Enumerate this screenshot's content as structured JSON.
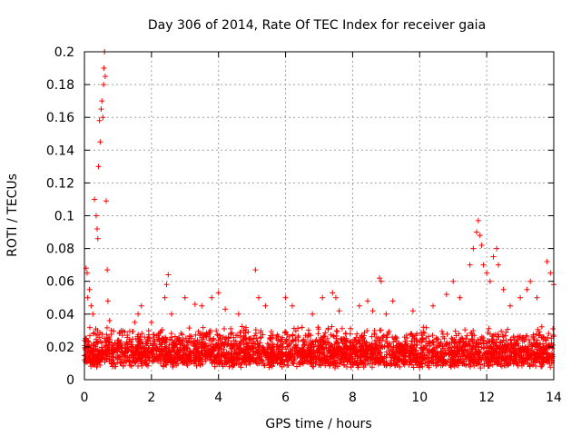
{
  "chart_data": {
    "type": "scatter",
    "title": "Day 306 of 2014, Rate Of TEC Index for receiver gaia",
    "xlabel": "GPS time / hours",
    "ylabel": "ROTI / TECUs",
    "xlim": [
      0,
      14
    ],
    "ylim": [
      0,
      0.2
    ],
    "xticks": [
      "0",
      "2",
      "4",
      "6",
      "8",
      "10",
      "12",
      "14"
    ],
    "yticks": [
      "0",
      "0.02",
      "0.04",
      "0.06",
      "0.08",
      "0.1",
      "0.12",
      "0.14",
      "0.16",
      "0.18",
      "0.2"
    ],
    "grid": true,
    "marker": "plus",
    "color": "#ff0000",
    "baseline_band": {
      "low": 0.007,
      "high": 0.03,
      "description_note": "dense scatter of points across 0-14 h"
    },
    "series": [
      {
        "x": [
          0.05,
          0.08,
          0.1,
          0.15,
          0.2,
          0.25,
          0.3,
          0.35,
          0.38,
          0.4,
          0.42,
          0.45,
          0.47,
          0.5,
          0.52,
          0.55,
          0.57,
          0.58,
          0.6,
          0.62,
          0.65,
          0.68,
          0.7,
          0.75,
          0.8,
          1.1,
          1.5,
          1.6,
          1.7,
          2.0,
          2.4,
          2.45,
          2.5,
          2.6,
          3.0,
          3.3,
          3.5,
          3.8,
          4.0,
          4.2,
          4.6,
          5.1,
          5.2,
          5.4,
          6.0,
          6.2,
          6.8,
          7.1,
          7.4,
          7.5,
          7.6,
          8.2,
          8.45,
          8.6,
          8.8,
          8.85,
          9.0,
          9.2,
          9.8,
          10.4,
          10.8,
          11.0,
          11.2,
          11.5,
          11.6,
          11.7,
          11.75,
          11.8,
          11.85,
          11.9,
          12.0,
          12.1,
          12.2,
          12.3,
          12.35,
          12.5,
          12.7,
          13.0,
          13.2,
          13.3,
          13.5,
          13.8,
          13.9,
          14.0
        ],
        "y": [
          0.068,
          0.065,
          0.05,
          0.055,
          0.045,
          0.04,
          0.11,
          0.1,
          0.092,
          0.086,
          0.13,
          0.158,
          0.145,
          0.165,
          0.17,
          0.16,
          0.18,
          0.19,
          0.2,
          0.185,
          0.109,
          0.067,
          0.048,
          0.036,
          0.03,
          0.03,
          0.035,
          0.04,
          0.045,
          0.035,
          0.05,
          0.058,
          0.064,
          0.04,
          0.05,
          0.046,
          0.045,
          0.05,
          0.053,
          0.043,
          0.04,
          0.067,
          0.05,
          0.045,
          0.05,
          0.045,
          0.04,
          0.05,
          0.053,
          0.05,
          0.042,
          0.045,
          0.048,
          0.042,
          0.062,
          0.06,
          0.04,
          0.048,
          0.042,
          0.045,
          0.052,
          0.06,
          0.05,
          0.07,
          0.08,
          0.09,
          0.097,
          0.088,
          0.082,
          0.07,
          0.065,
          0.06,
          0.075,
          0.08,
          0.07,
          0.055,
          0.045,
          0.05,
          0.055,
          0.06,
          0.05,
          0.072,
          0.065,
          0.058
        ]
      }
    ]
  }
}
